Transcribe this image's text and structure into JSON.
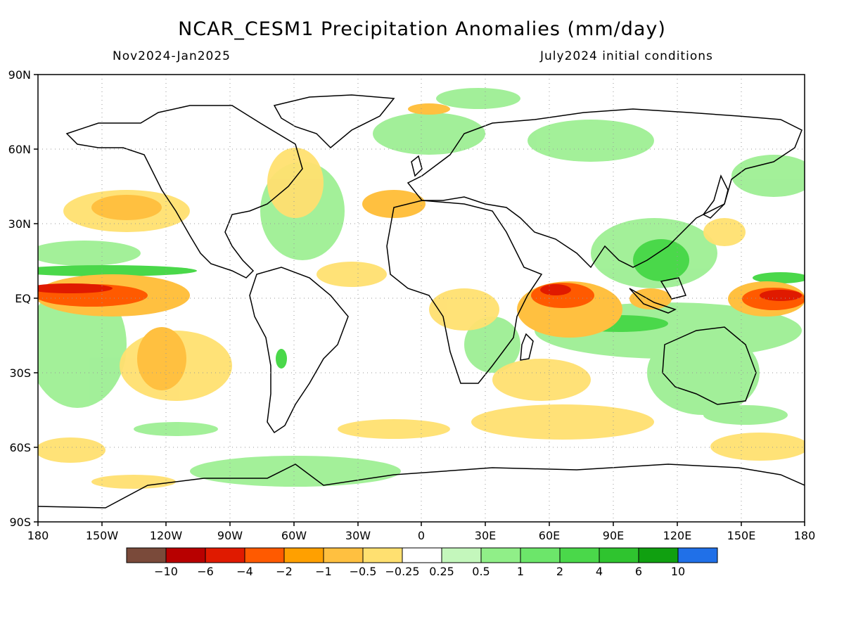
{
  "title": "NCAR_CESM1 Precipitation Anomalies (mm/day)",
  "subtitle_left": "Nov2024-Jan2025",
  "subtitle_right": "July2024 initial conditions",
  "map": {
    "lon_range": [
      -180,
      180
    ],
    "lat_range": [
      -90,
      90
    ],
    "lon_ticks": [
      "180",
      "150W",
      "120W",
      "90W",
      "60W",
      "30W",
      "0",
      "30E",
      "60E",
      "90E",
      "120E",
      "150E",
      "180"
    ],
    "lat_ticks": [
      "90N",
      "60N",
      "30N",
      "EQ",
      "30S",
      "60S",
      "90S"
    ],
    "grid": "dotted"
  },
  "colorbar": {
    "colors": [
      "#7a4a3a",
      "#b80000",
      "#e01a00",
      "#ff5a00",
      "#ffa000",
      "#ffc040",
      "#ffe070",
      "#ffffff",
      "#c4f7bc",
      "#90ef88",
      "#6ce66a",
      "#4ad84a",
      "#2fc42f",
      "#10a010",
      "#2070e8"
    ],
    "labels": [
      "-10",
      "-6",
      "-4",
      "-2",
      "-1",
      "-0.5",
      "-0.25",
      "0.25",
      "0.5",
      "1",
      "2",
      "4",
      "6",
      "10"
    ]
  }
}
